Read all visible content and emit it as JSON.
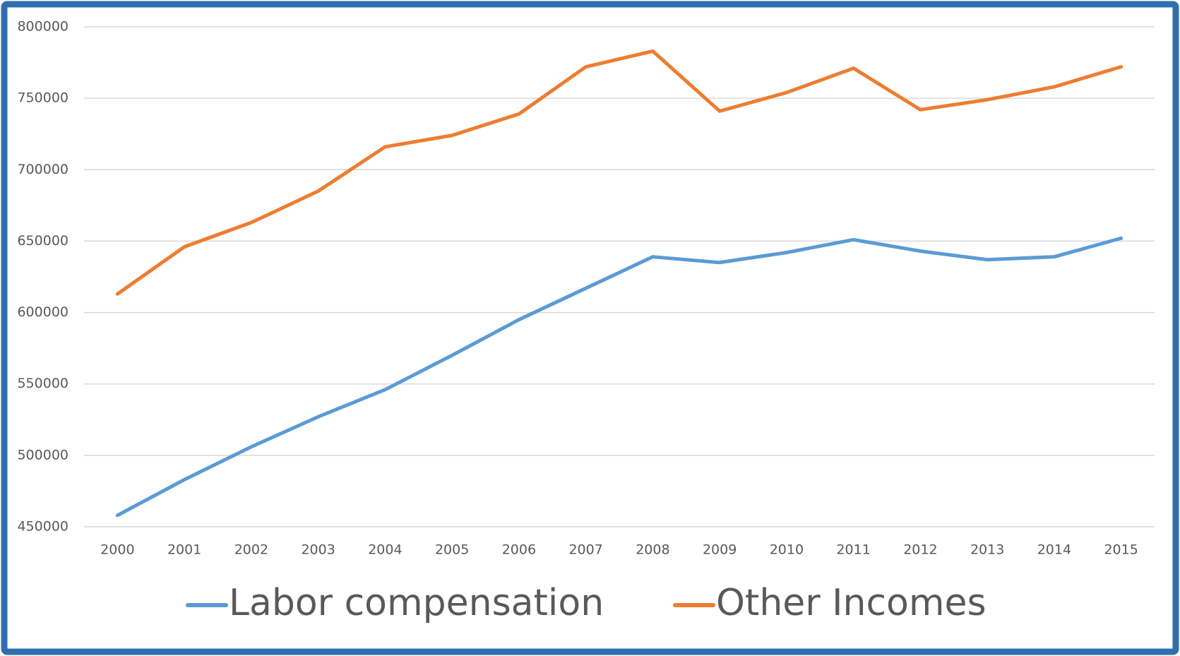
{
  "chart_data": {
    "type": "line",
    "categories": [
      "2000",
      "2001",
      "2002",
      "2003",
      "2004",
      "2005",
      "2006",
      "2007",
      "2008",
      "2009",
      "2010",
      "2011",
      "2012",
      "2013",
      "2014",
      "2015"
    ],
    "series": [
      {
        "name": "Labor compensation",
        "color": "#5b9bd5",
        "values": [
          458000,
          483000,
          506000,
          527000,
          546000,
          570000,
          595000,
          617000,
          639000,
          635000,
          642000,
          651000,
          643000,
          637000,
          639000,
          652000
        ]
      },
      {
        "name": "Other Incomes",
        "color": "#ed7d31",
        "values": [
          613000,
          646000,
          663000,
          685000,
          716000,
          724000,
          739000,
          772000,
          783000,
          741000,
          754000,
          771000,
          742000,
          749000,
          758000,
          772000
        ]
      }
    ],
    "ylim": [
      450000,
      800000
    ],
    "yticks": [
      450000,
      500000,
      550000,
      600000,
      650000,
      700000,
      750000,
      800000
    ],
    "grid": true,
    "legend": "bottom"
  }
}
